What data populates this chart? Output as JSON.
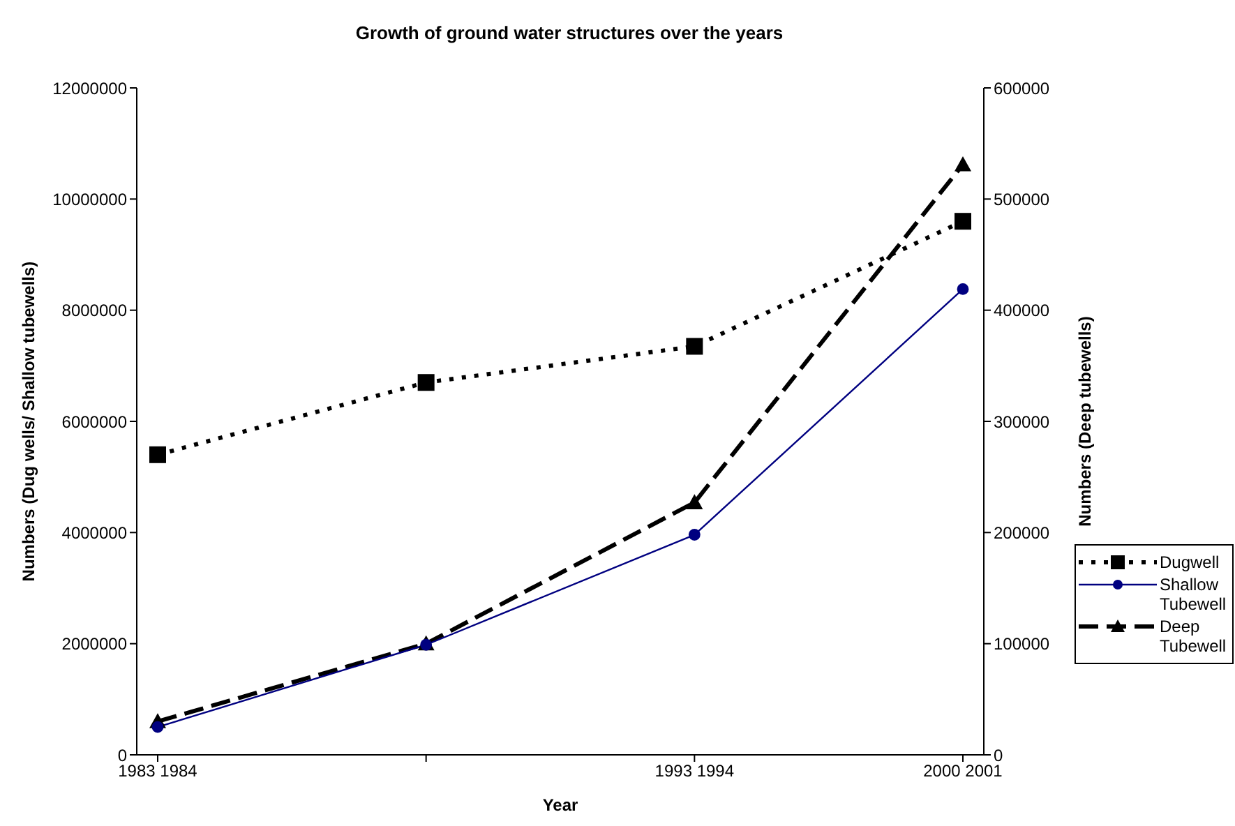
{
  "chart_data": {
    "type": "line",
    "title": "Growth of ground water structures over the years",
    "xlabel": "Year",
    "ylabel": "Numbers (Dug wells/ Shallow tubewells)",
    "y2label": "Numbers (Deep tubewells)",
    "categories": [
      "1983 1984",
      null,
      "1993 1994",
      "2000 2001"
    ],
    "ylim": [
      0,
      12000000
    ],
    "yticks": [
      0,
      2000000,
      4000000,
      6000000,
      8000000,
      10000000,
      12000000
    ],
    "y2lim": [
      0,
      600000
    ],
    "y2ticks": [
      0,
      100000,
      200000,
      300000,
      400000,
      500000,
      600000
    ],
    "series": [
      {
        "name": "Dugwell",
        "color": "#000000",
        "values": [
          5400000,
          6700000,
          7350000,
          9600000
        ],
        "marker": "square",
        "line_style": "dotted"
      },
      {
        "name": "Shallow Tubewell",
        "color": "#000080",
        "values": [
          500000,
          1980000,
          3960000,
          8380000
        ],
        "marker": "circle",
        "line_style": "solid"
      },
      {
        "name": "Deep Tubewell",
        "color": "#000000",
        "values": [
          30000,
          100000,
          227000,
          531000
        ],
        "marker": "triangle",
        "line_style": "dashed",
        "axis": "y2"
      }
    ],
    "grid": false,
    "legend": "right"
  }
}
